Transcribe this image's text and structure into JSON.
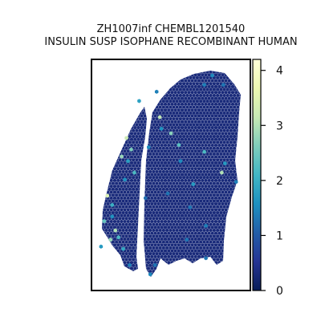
{
  "chart_data": {
    "type": "scatter",
    "title_line1": "ZH1007inf CHEMBL1201540",
    "title_line2": "INSULIN SUSP ISOPHANE RECOMBINANT HUMAN",
    "xlabel": "",
    "ylabel": "",
    "colorbar": {
      "range": [
        0,
        4.2
      ],
      "ticks": [
        0,
        1,
        2,
        3,
        4
      ],
      "tick_labels": [
        "0",
        "1",
        "2",
        "3",
        "4"
      ],
      "colormap": "YlGnBu_r",
      "stops": [
        "#081d58",
        "#253494",
        "#225ea8",
        "#1d91c0",
        "#41b6c4",
        "#7fcdbb",
        "#c7e9b4",
        "#edf8b1",
        "#ffffd9"
      ]
    },
    "marker": "hexagon",
    "grid": false,
    "background": "#ffffff",
    "dominant_value": 0.3,
    "highlight_points": [
      {
        "x": 0.76,
        "y": 0.93,
        "value": 1.5
      },
      {
        "x": 0.83,
        "y": 0.89,
        "value": 1.3
      },
      {
        "x": 0.71,
        "y": 0.89,
        "value": 1.4
      },
      {
        "x": 0.43,
        "y": 0.75,
        "value": 3.1
      },
      {
        "x": 0.44,
        "y": 0.7,
        "value": 1.6
      },
      {
        "x": 0.5,
        "y": 0.68,
        "value": 2.7
      },
      {
        "x": 0.36,
        "y": 0.62,
        "value": 1.5
      },
      {
        "x": 0.3,
        "y": 0.82,
        "value": 1.8
      },
      {
        "x": 0.55,
        "y": 0.63,
        "value": 2.3
      },
      {
        "x": 0.71,
        "y": 0.6,
        "value": 2.2
      },
      {
        "x": 0.82,
        "y": 0.51,
        "value": 3.0
      },
      {
        "x": 0.84,
        "y": 0.55,
        "value": 1.7
      },
      {
        "x": 0.64,
        "y": 0.46,
        "value": 1.7
      },
      {
        "x": 0.56,
        "y": 0.56,
        "value": 1.5
      },
      {
        "x": 0.91,
        "y": 0.47,
        "value": 1.4
      },
      {
        "x": 0.48,
        "y": 0.42,
        "value": 1.3
      },
      {
        "x": 0.62,
        "y": 0.36,
        "value": 1.3
      },
      {
        "x": 0.72,
        "y": 0.28,
        "value": 1.4
      },
      {
        "x": 0.22,
        "y": 0.66,
        "value": 3.2
      },
      {
        "x": 0.25,
        "y": 0.61,
        "value": 2.6
      },
      {
        "x": 0.19,
        "y": 0.58,
        "value": 2.8
      },
      {
        "x": 0.23,
        "y": 0.56,
        "value": 1.8
      },
      {
        "x": 0.27,
        "y": 0.51,
        "value": 2.2
      },
      {
        "x": 0.21,
        "y": 0.48,
        "value": 1.6
      },
      {
        "x": 0.1,
        "y": 0.41,
        "value": 3.4
      },
      {
        "x": 0.13,
        "y": 0.37,
        "value": 2.0
      },
      {
        "x": 0.08,
        "y": 0.3,
        "value": 2.4
      },
      {
        "x": 0.15,
        "y": 0.26,
        "value": 3.0
      },
      {
        "x": 0.12,
        "y": 0.22,
        "value": 2.8
      },
      {
        "x": 0.17,
        "y": 0.23,
        "value": 2.2
      },
      {
        "x": 0.06,
        "y": 0.19,
        "value": 1.7
      },
      {
        "x": 0.2,
        "y": 0.18,
        "value": 1.9
      },
      {
        "x": 0.13,
        "y": 0.32,
        "value": 1.6
      },
      {
        "x": 0.24,
        "y": 0.11,
        "value": 1.4
      },
      {
        "x": 0.37,
        "y": 0.07,
        "value": 1.5
      },
      {
        "x": 0.4,
        "y": 0.11,
        "value": 1.3
      },
      {
        "x": 0.72,
        "y": 0.14,
        "value": 1.3
      },
      {
        "x": 0.34,
        "y": 0.4,
        "value": 1.2
      },
      {
        "x": 0.6,
        "y": 0.22,
        "value": 1.3
      },
      {
        "x": 0.41,
        "y": 0.86,
        "value": 1.4
      }
    ]
  }
}
